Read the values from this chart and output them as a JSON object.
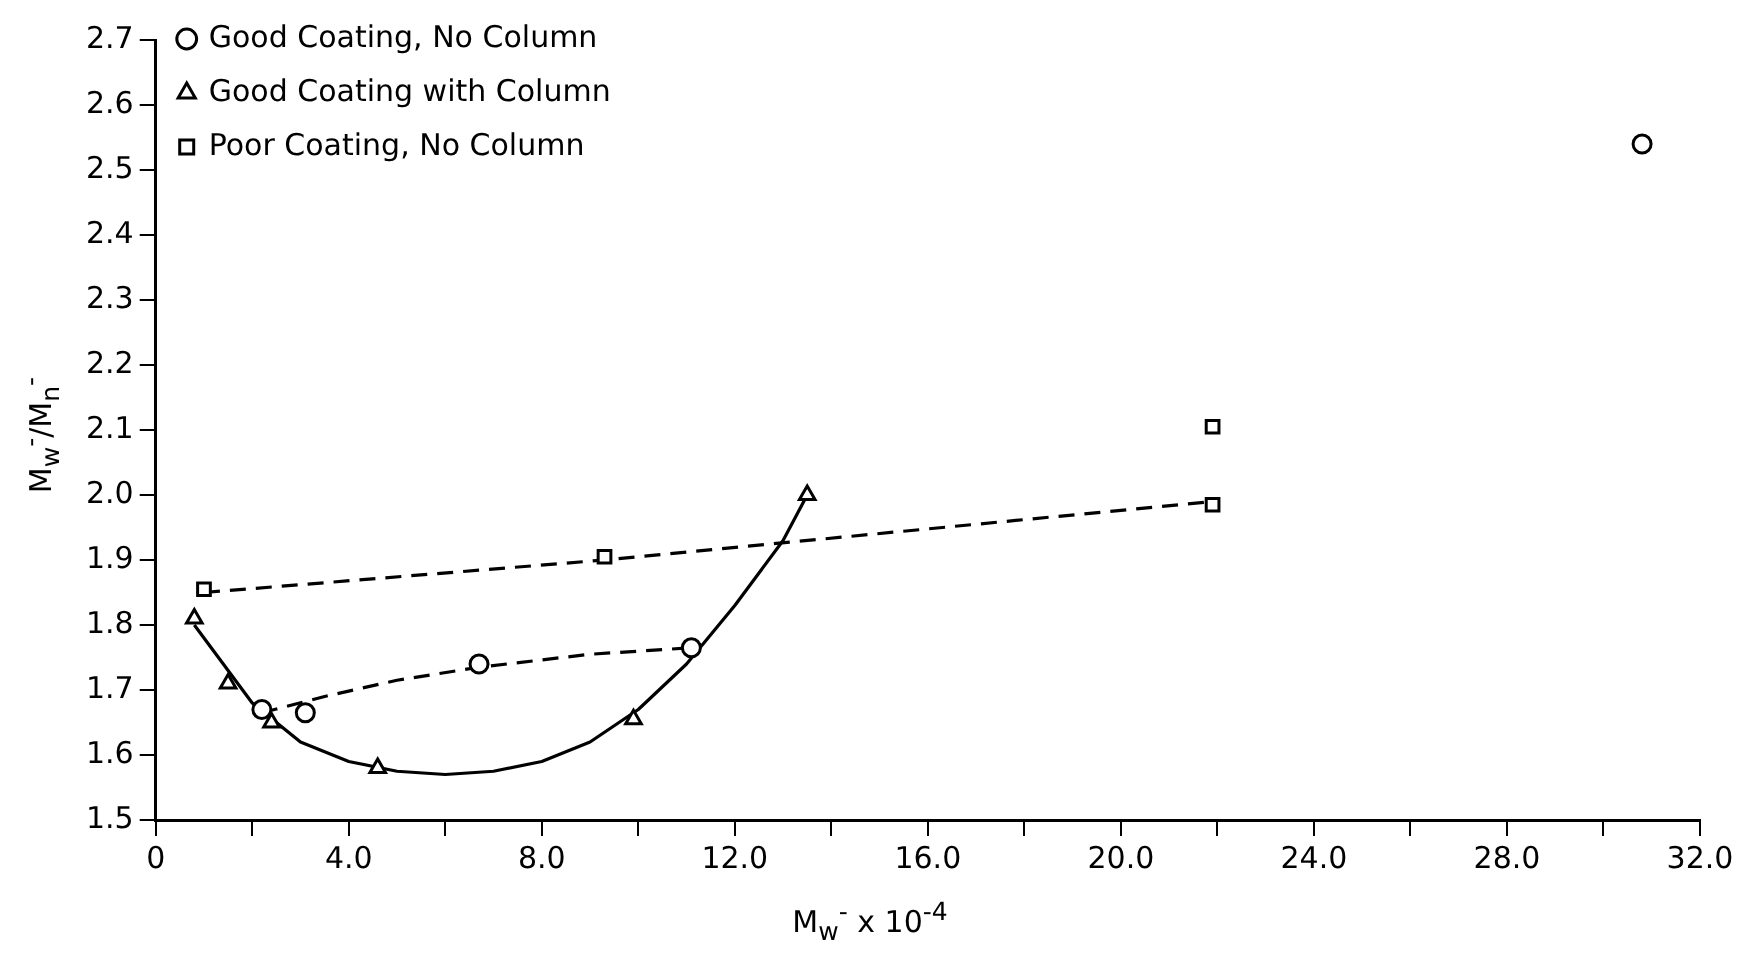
{
  "chart_data": {
    "type": "scatter",
    "xlabel": "M$_{w}$$^{-}$ x 10$^{-4}$",
    "ylabel": "M$_{w}$$^{-}$/M$_{n}$$^{-}$",
    "xlim": [
      0,
      32
    ],
    "ylim": [
      1.5,
      2.7
    ],
    "xticks": [
      0,
      {
        "value": 2,
        "label": null
      },
      {
        "value": 4,
        "label": "4.0"
      },
      {
        "value": 6,
        "label": null
      },
      {
        "value": 8,
        "label": "8.0"
      },
      {
        "value": 10,
        "label": null
      },
      {
        "value": 12,
        "label": "12.0"
      },
      {
        "value": 14,
        "label": null
      },
      {
        "value": 16,
        "label": "16.0"
      },
      {
        "value": 18,
        "label": null
      },
      {
        "value": 20,
        "label": "20.0"
      },
      {
        "value": 22,
        "label": null
      },
      {
        "value": 24,
        "label": "24.0"
      },
      {
        "value": 26,
        "label": null
      },
      {
        "value": 28,
        "label": "28.0"
      },
      {
        "value": 30,
        "label": null
      },
      {
        "value": 32,
        "label": "32.0"
      }
    ],
    "yticks": [
      1.5,
      1.6,
      1.7,
      1.8,
      1.9,
      {
        "value": 2,
        "label": "2.0"
      },
      2.1,
      2.2,
      2.3,
      2.4,
      2.5,
      2.6,
      2.7
    ],
    "grid": false,
    "legend": "top left",
    "series": [
      {
        "name": "Good Coating, No Column",
        "type": "scatter",
        "marker": "circle",
        "color": "#000000",
        "x": [
          2.2,
          3.1,
          6.7,
          11.1,
          30.8
        ],
        "values": [
          1.67,
          1.665,
          1.74,
          1.765,
          2.54
        ]
      },
      {
        "name": "Good Coating with Column",
        "type": "scatter",
        "marker": "triangle",
        "color": "#000000",
        "x": [
          0.8,
          1.5,
          2.4,
          4.6,
          9.9,
          13.5
        ],
        "values": [
          1.81,
          1.71,
          1.65,
          1.58,
          1.655,
          2.0
        ]
      },
      {
        "name": "Poor Coating, No Column",
        "type": "scatter",
        "marker": "square",
        "color": "#000000",
        "x": [
          1.0,
          9.3,
          21.9,
          21.9
        ],
        "values": [
          1.855,
          1.905,
          1.985,
          2.105
        ]
      },
      {
        "type": "line",
        "marker": "none",
        "line_style": "dashed",
        "color": "#000000",
        "x": [
          2.2,
          3.5,
          5.0,
          6.7,
          9.0,
          11.1
        ],
        "values": [
          1.665,
          1.69,
          1.715,
          1.735,
          1.755,
          1.765
        ]
      },
      {
        "type": "line",
        "marker": "none",
        "line_style": "solid",
        "color": "#000000",
        "x": [
          0.8,
          2,
          3,
          4,
          5,
          6,
          7,
          8,
          9,
          10,
          11,
          12,
          13,
          13.5
        ],
        "values": [
          1.8,
          1.68,
          1.62,
          1.59,
          1.575,
          1.57,
          1.575,
          1.59,
          1.62,
          1.67,
          1.74,
          1.83,
          1.93,
          2.0
        ]
      },
      {
        "type": "line",
        "marker": "none",
        "line_style": "dashed",
        "color": "#000000",
        "x": [
          1.0,
          9.3,
          21.9
        ],
        "values": [
          1.85,
          1.9,
          1.99
        ]
      }
    ]
  }
}
